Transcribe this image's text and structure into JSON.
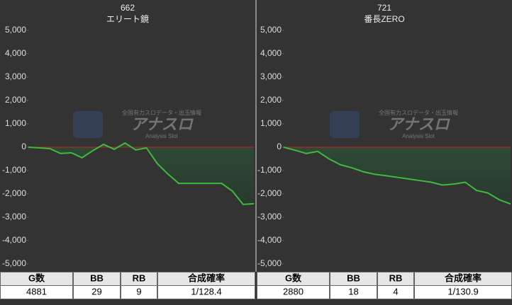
{
  "chart_data": [
    {
      "type": "line",
      "title": "662",
      "subtitle": "エリート鏡",
      "series": [
        {
          "color": "#3dbb3d",
          "values": [
            0,
            -30,
            -60,
            -270,
            -240,
            -450,
            -150,
            120,
            -90,
            180,
            -120,
            -30,
            -700,
            -1150,
            -1550,
            -1550,
            -1550,
            -1550,
            -1550,
            -1880,
            -2450,
            -2420
          ]
        }
      ],
      "ylim": [
        -5000,
        5000
      ],
      "yticks": [
        {
          "value": 5000,
          "label": "5,000"
        },
        {
          "value": 4000,
          "label": "4,000"
        },
        {
          "value": 3000,
          "label": "3,000"
        },
        {
          "value": 2000,
          "label": "2,000"
        },
        {
          "value": 1000,
          "label": "1,000"
        },
        0,
        {
          "value": -1000,
          "label": "-1,000"
        },
        {
          "value": -2000,
          "label": "-2,000"
        },
        {
          "value": -3000,
          "label": "-3,000"
        },
        {
          "value": -4000,
          "label": "-4,000"
        },
        {
          "value": -5000,
          "label": "-5,000"
        }
      ],
      "zero_line_color": "#cc2222"
    },
    {
      "type": "line",
      "title": "721",
      "subtitle": "番長ZERO",
      "series": [
        {
          "color": "#3dbb3d",
          "values": [
            0,
            -130,
            -270,
            -180,
            -500,
            -750,
            -880,
            -1050,
            -1160,
            -1220,
            -1290,
            -1360,
            -1430,
            -1500,
            -1620,
            -1580,
            -1500,
            -1850,
            -1960,
            -2250,
            -2430
          ]
        }
      ],
      "ylim": [
        -5000,
        5000
      ],
      "yticks": [
        {
          "value": 5000,
          "label": "5,000"
        },
        {
          "value": 4000,
          "label": "4,000"
        },
        {
          "value": 3000,
          "label": "3,000"
        },
        {
          "value": 2000,
          "label": "2,000"
        },
        {
          "value": 1000,
          "label": "1,000"
        },
        0,
        {
          "value": -1000,
          "label": "-1,000"
        },
        {
          "value": -2000,
          "label": "-2,000"
        },
        {
          "value": -3000,
          "label": "-3,000"
        },
        {
          "value": -4000,
          "label": "-4,000"
        },
        {
          "value": -5000,
          "label": "-5,000"
        }
      ],
      "zero_line_color": "#cc2222"
    }
  ],
  "tables": [
    {
      "header": [
        "G数",
        "BB",
        "RB",
        "合成確率"
      ],
      "row": [
        4881,
        29,
        9,
        "1/128.4"
      ]
    },
    {
      "header": [
        "G数",
        "BB",
        "RB",
        "合成確率"
      ],
      "row": [
        2880,
        18,
        4,
        "1/130.9"
      ]
    }
  ],
  "watermark": {
    "tagline": "全国有力スロデータ・出玉情報",
    "title": "アナスロ",
    "subtitle": "Analysis Slot"
  }
}
